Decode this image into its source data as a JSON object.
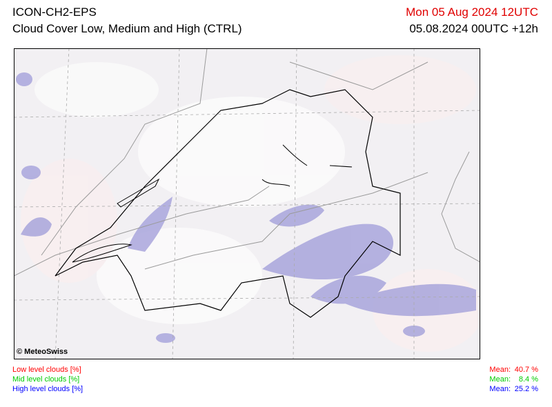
{
  "header": {
    "title": "ICON-CH2-EPS",
    "subtitle": "Cloud Cover Low, Medium and High (CTRL)",
    "valid_time": "Mon 05 Aug 2024 12UTC",
    "run_time": "05.08.2024 00UTC +12h"
  },
  "map": {
    "credit": "© MeteoSwiss"
  },
  "legend": [
    {
      "label": "Low level clouds [%]",
      "mean_label": "Mean:",
      "mean": "40.7 %",
      "color": "#ff0000"
    },
    {
      "label": "Mid level clouds [%]",
      "mean_label": "Mean:",
      "mean": "8.4 %",
      "color": "#00cc00"
    },
    {
      "label": "High level clouds [%]",
      "mean_label": "Mean:",
      "mean": "25.2 %",
      "color": "#0000ff"
    }
  ]
}
